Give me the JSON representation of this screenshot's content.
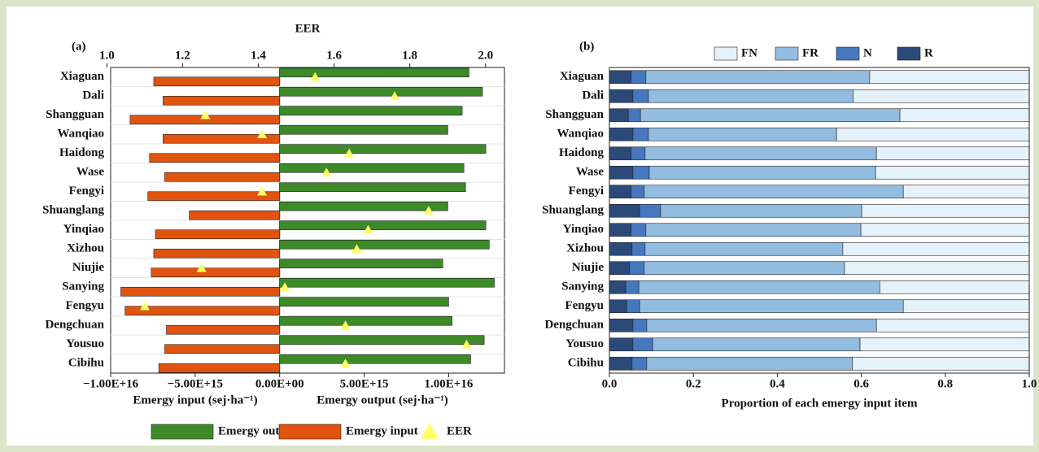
{
  "chart_data": [
    {
      "type": "diverging",
      "label": "(a)",
      "x2label": "EER",
      "xlabel_left": "Emergy input (sej·ha⁻¹)",
      "xlabel_right": "Emergy output (sej·ha⁻¹)",
      "categories": [
        "Xiaguan",
        "Dali",
        "Shangguan",
        "Wanqiao",
        "Haidong",
        "Wase",
        "Fengyi",
        "Shuanglang",
        "Yinqiao",
        "Xizhou",
        "Niujie",
        "Sanying",
        "Fengyu",
        "Dengchuan",
        "Yousuo",
        "Cibihu"
      ],
      "series": [
        {
          "name": "Emergy output",
          "color": "#3e8a29",
          "values": [
            1.12e+16,
            1.2e+16,
            1.08e+16,
            9950000000000000.0,
            1.22e+16,
            1.09e+16,
            1.1e+16,
            9950000000000000.0,
            1.22e+16,
            1.24e+16,
            9650000000000000.0,
            1.27e+16,
            1e+16,
            1.02e+16,
            1.21e+16,
            1.13e+16
          ]
        },
        {
          "name": "Emergy input",
          "color": "#e0540f",
          "values": [
            -7450000000000000.0,
            -6900000000000000.0,
            -8850000000000000.0,
            -6900000000000000.0,
            -7700000000000000.0,
            -6800000000000000.0,
            -7800000000000000.0,
            -5350000000000000.0,
            -7350000000000000.0,
            -7450000000000000.0,
            -7600000000000000.0,
            -9400000000000000.0,
            -9150000000000000.0,
            -6700000000000000.0,
            -6800000000000000.0,
            -7150000000000000.0
          ]
        },
        {
          "name": "EER",
          "color": "#ffff66",
          "axis": "x2",
          "values": [
            1.55,
            1.76,
            1.26,
            1.41,
            1.64,
            1.58,
            1.41,
            1.85,
            1.69,
            1.66,
            1.25,
            1.47,
            1.1,
            1.63,
            1.95,
            1.63
          ]
        }
      ],
      "xlim": [
        -1e+16,
        1.33e+16
      ],
      "xticks": [
        {
          "value": -1e+16,
          "label": "−1.00E+16"
        },
        {
          "value": -5000000000000000.0,
          "label": "−5.00E+15"
        },
        {
          "value": 0,
          "label": "0.00E+00"
        },
        {
          "value": 5000000000000000.0,
          "label": "5.00E+15"
        },
        {
          "value": 1e+16,
          "label": "1.00E+16"
        }
      ],
      "x2lim": [
        1.01,
        2.05
      ],
      "x2ticks": [
        {
          "value": 1,
          "label": "1.0"
        },
        1.2,
        1.4,
        1.6,
        1.8,
        {
          "value": 2,
          "label": "2.0"
        }
      ]
    },
    {
      "type": "stacked",
      "label": "(b)",
      "xlabel": "Proportion of each emergy input item",
      "categories": [
        "Xiaguan",
        "Dali",
        "Shangguan",
        "Wanqiao",
        "Haidong",
        "Wase",
        "Fengyi",
        "Shuanglang",
        "Yinqiao",
        "Xizhou",
        "Niujie",
        "Sanying",
        "Fengyu",
        "Dengchuan",
        "Yousuo",
        "Cibihu"
      ],
      "series": [
        {
          "name": "R",
          "color": "#2c4a79",
          "values": [
            0.052,
            0.056,
            0.045,
            0.056,
            0.052,
            0.056,
            0.052,
            0.072,
            0.052,
            0.054,
            0.048,
            0.039,
            0.041,
            0.056,
            0.056,
            0.054
          ]
        },
        {
          "name": "N",
          "color": "#4678bf",
          "values": [
            0.035,
            0.037,
            0.029,
            0.037,
            0.033,
            0.039,
            0.031,
            0.05,
            0.035,
            0.031,
            0.035,
            0.031,
            0.031,
            0.033,
            0.047,
            0.035
          ]
        },
        {
          "name": "FR",
          "color": "#93bde0",
          "values": [
            0.533,
            0.488,
            0.618,
            0.448,
            0.551,
            0.539,
            0.617,
            0.479,
            0.512,
            0.471,
            0.477,
            0.574,
            0.628,
            0.547,
            0.494,
            0.49
          ]
        },
        {
          "name": "FN",
          "color": "#e5f2fa",
          "values": [
            0.38,
            0.419,
            0.308,
            0.459,
            0.364,
            0.366,
            0.3,
            0.399,
            0.401,
            0.444,
            0.44,
            0.356,
            0.3,
            0.364,
            0.403,
            0.421
          ]
        }
      ],
      "legend_order": [
        "FN",
        "FR",
        "N",
        "R"
      ],
      "xlim": [
        0,
        1
      ],
      "xticks": [
        {
          "value": 0,
          "label": "0.0"
        },
        0.2,
        0.4,
        0.6,
        0.8,
        {
          "value": 1,
          "label": "1.0"
        }
      ]
    }
  ]
}
